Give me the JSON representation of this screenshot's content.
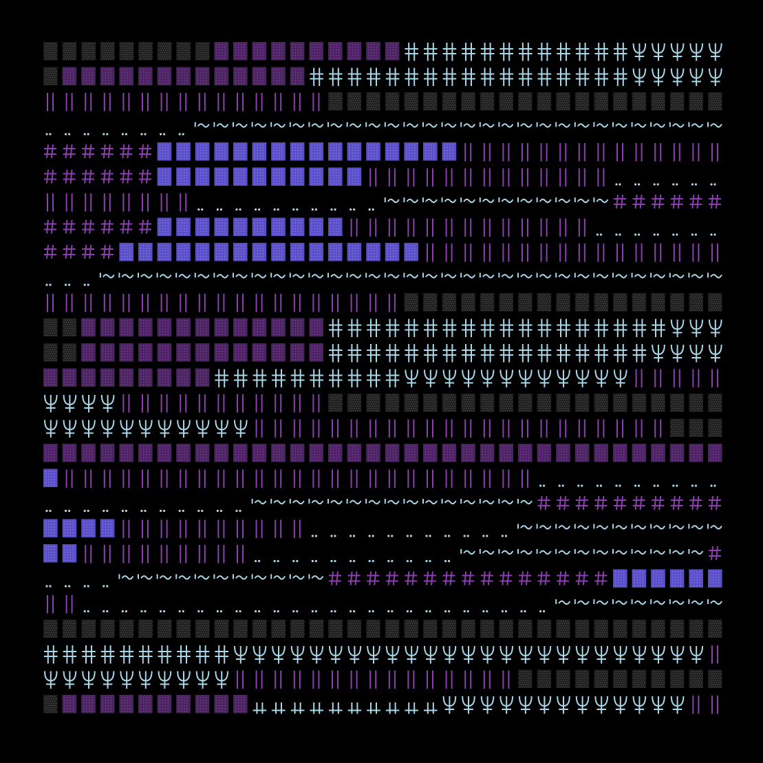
{
  "colors": {
    "background": "#000000",
    "purple": "#8c3fb0",
    "purple_dim": "#4a2560",
    "indigo": "#5b4fc9",
    "cyan": "#a9d8ea",
    "gray": "#5a5a5a"
  },
  "glyph_legend": {
    "A": "dotted-gray-block",
    "B": "dotted-purple-block",
    "C": "cyan-cross-glyph",
    "D": "cyan-trident-glyph",
    "E": "purple-bar",
    "F": "dots",
    "G": "cyan-tilde-wave",
    "H": "purple-hash",
    "I": "indigo-dotted-block",
    "J": "cyan-underscore-cross"
  },
  "rows": [
    [
      [
        "A",
        9
      ],
      [
        "B",
        10
      ],
      [
        "C",
        12
      ],
      [
        "D",
        5
      ]
    ],
    [
      [
        "A",
        1
      ],
      [
        "B",
        13
      ],
      [
        "C",
        17
      ],
      [
        "D",
        5
      ]
    ],
    [
      [
        "E",
        15
      ],
      [
        "A",
        21
      ]
    ],
    [
      [
        "F",
        8
      ],
      [
        "G",
        28
      ]
    ],
    [
      [
        "H",
        6
      ],
      [
        "I",
        16
      ],
      [
        "E",
        14
      ]
    ],
    [
      [
        "H",
        6
      ],
      [
        "I",
        11
      ],
      [
        "E",
        13
      ],
      [
        "F",
        6
      ]
    ],
    [
      [
        "E",
        8
      ],
      [
        "F",
        10
      ],
      [
        "G",
        12
      ],
      [
        "H",
        7
      ]
    ],
    [
      [
        "H",
        6
      ],
      [
        "I",
        10
      ],
      [
        "E",
        13
      ],
      [
        "F",
        7
      ]
    ],
    [
      [
        "H",
        4
      ],
      [
        "I",
        16
      ],
      [
        "E",
        16
      ]
    ],
    [
      [
        "F",
        3
      ],
      [
        "G",
        33
      ]
    ],
    [
      [
        "E",
        19
      ],
      [
        "A",
        17
      ]
    ],
    [
      [
        "A",
        2
      ],
      [
        "B",
        13
      ],
      [
        "C",
        18
      ],
      [
        "D",
        3
      ]
    ],
    [
      [
        "A",
        2
      ],
      [
        "B",
        13
      ],
      [
        "C",
        17
      ],
      [
        "D",
        4
      ]
    ],
    [
      [
        "B",
        9
      ],
      [
        "C",
        10
      ],
      [
        "D",
        12
      ],
      [
        "E",
        5
      ]
    ],
    [
      [
        "D",
        4
      ],
      [
        "E",
        11
      ],
      [
        "A",
        21
      ]
    ],
    [
      [
        "D",
        11
      ],
      [
        "E",
        22
      ],
      [
        "A",
        3
      ]
    ],
    [
      [
        "B",
        36
      ]
    ],
    [
      [
        "I",
        1
      ],
      [
        "E",
        25
      ],
      [
        "F",
        10
      ]
    ],
    [
      [
        "F",
        11
      ],
      [
        "G",
        15
      ],
      [
        "H",
        10
      ]
    ],
    [
      [
        "I",
        4
      ],
      [
        "E",
        10
      ],
      [
        "F",
        11
      ],
      [
        "G",
        11
      ]
    ],
    [
      [
        "I",
        2
      ],
      [
        "E",
        9
      ],
      [
        "F",
        11
      ],
      [
        "G",
        13
      ],
      [
        "H",
        1
      ]
    ],
    [
      [
        "F",
        4
      ],
      [
        "G",
        11
      ],
      [
        "H",
        15
      ],
      [
        "I",
        6
      ]
    ],
    [
      [
        "E",
        2
      ],
      [
        "F",
        25
      ],
      [
        "G",
        9
      ]
    ],
    [
      [
        "A",
        36
      ]
    ],
    [
      [
        "C",
        10
      ],
      [
        "D",
        25
      ],
      [
        "E",
        1
      ]
    ],
    [
      [
        "D",
        10
      ],
      [
        "E",
        15
      ],
      [
        "A",
        11
      ]
    ],
    [
      [
        "A",
        1
      ],
      [
        "B",
        10
      ],
      [
        "J",
        10
      ],
      [
        "D",
        13
      ],
      [
        "E",
        2
      ]
    ]
  ]
}
